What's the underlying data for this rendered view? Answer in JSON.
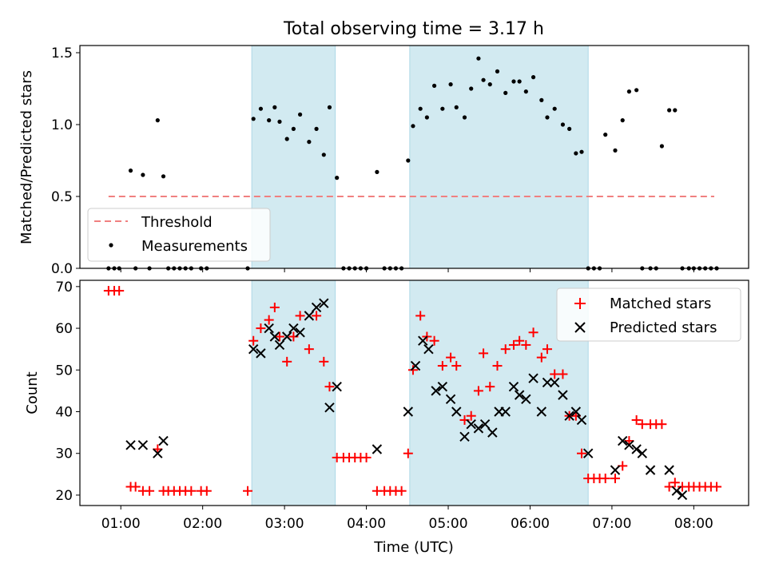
{
  "chart_data": [
    {
      "type": "scatter",
      "title": "Total observing time = 3.17 h",
      "ylabel": "Matched/Predicted stars",
      "ylim": [
        0,
        1.55
      ],
      "yticks": [
        0.0,
        0.5,
        1.0,
        1.5
      ],
      "ytick_labels": [
        "0.0",
        "0.5",
        "1.0",
        "1.5"
      ],
      "x_unit": "hours UTC",
      "xlim": [
        0.5,
        8.67
      ],
      "xticks": [
        1,
        2,
        3,
        4,
        5,
        6,
        7,
        8
      ],
      "shaded_intervals": [
        [
          2.6,
          3.62
        ],
        [
          4.53,
          6.71
        ]
      ],
      "shade_color": "#add8e6",
      "threshold": {
        "name": "Threshold",
        "y": 0.5,
        "x_range": [
          0.85,
          8.25
        ],
        "color": "#f08080"
      },
      "legend": {
        "position": "lower-left",
        "entries": [
          "Threshold",
          "Measurements"
        ]
      },
      "series": [
        {
          "name": "Measurements",
          "color": "#000000",
          "x": [
            0.85,
            0.92,
            0.98,
            1.12,
            1.18,
            1.27,
            1.35,
            1.45,
            1.52,
            1.58,
            1.65,
            1.72,
            1.79,
            1.86,
            1.98,
            2.05,
            2.55,
            2.62,
            2.71,
            2.81,
            2.88,
            2.94,
            3.03,
            3.11,
            3.19,
            3.3,
            3.39,
            3.48,
            3.55,
            3.64,
            3.72,
            3.79,
            3.86,
            3.93,
            4.0,
            4.13,
            4.22,
            4.29,
            4.36,
            4.43,
            4.51,
            4.57,
            4.66,
            4.74,
            4.83,
            4.93,
            5.03,
            5.1,
            5.2,
            5.28,
            5.37,
            5.43,
            5.51,
            5.6,
            5.7,
            5.8,
            5.87,
            5.95,
            6.04,
            6.14,
            6.21,
            6.3,
            6.4,
            6.48,
            6.56,
            6.63,
            6.71,
            6.78,
            6.85,
            6.92,
            7.04,
            7.13,
            7.21,
            7.3,
            7.37,
            7.47,
            7.54,
            7.61,
            7.7,
            7.77,
            7.86,
            7.94,
            8.0,
            8.07,
            8.14,
            8.21,
            8.28
          ],
          "y": [
            0,
            0,
            0,
            0.68,
            0,
            0.65,
            0,
            1.03,
            0.64,
            0,
            0,
            0,
            0,
            0,
            0,
            0,
            0,
            1.04,
            1.11,
            1.03,
            1.12,
            1.02,
            0.9,
            0.97,
            1.07,
            0.88,
            0.97,
            0.79,
            1.12,
            0.63,
            0,
            0,
            0,
            0,
            0,
            0.67,
            0,
            0,
            0,
            0,
            0.75,
            0.99,
            1.11,
            1.05,
            1.27,
            1.11,
            1.28,
            1.12,
            1.05,
            1.25,
            1.46,
            1.31,
            1.28,
            1.37,
            1.22,
            1.3,
            1.3,
            1.23,
            1.33,
            1.17,
            1.05,
            1.11,
            1.0,
            0.97,
            0.8,
            0.81,
            0,
            0,
            0,
            0.93,
            0.82,
            1.03,
            1.23,
            1.24,
            0,
            0,
            0,
            0.85,
            1.1,
            1.1,
            0,
            0,
            0,
            0,
            0,
            0,
            0
          ]
        }
      ]
    },
    {
      "type": "scatter",
      "xlabel": "Time (UTC)",
      "ylabel": "Count",
      "ylim": [
        17.5,
        71.5
      ],
      "yticks": [
        20,
        30,
        40,
        50,
        60,
        70
      ],
      "ytick_labels": [
        "20",
        "30",
        "40",
        "50",
        "60",
        "70"
      ],
      "x_unit": "hours UTC",
      "xlim": [
        0.5,
        8.67
      ],
      "xticks": [
        1,
        2,
        3,
        4,
        5,
        6,
        7,
        8
      ],
      "xtick_labels": [
        "01:00",
        "02:00",
        "03:00",
        "04:00",
        "05:00",
        "06:00",
        "07:00",
        "08:00"
      ],
      "shaded_intervals": [
        [
          2.6,
          3.62
        ],
        [
          4.53,
          6.71
        ]
      ],
      "shade_color": "#add8e6",
      "legend": {
        "position": "top-right",
        "entries": [
          "Matched stars",
          "Predicted stars"
        ]
      },
      "series": [
        {
          "name": "Matched stars",
          "marker": "plus",
          "color": "#ff0000",
          "x": [
            0.85,
            0.92,
            0.98,
            1.12,
            1.18,
            1.27,
            1.35,
            1.45,
            1.52,
            1.58,
            1.65,
            1.72,
            1.79,
            1.86,
            1.98,
            2.05,
            2.55,
            2.62,
            2.71,
            2.81,
            2.88,
            2.94,
            3.03,
            3.11,
            3.19,
            3.3,
            3.39,
            3.48,
            3.55,
            3.64,
            3.72,
            3.79,
            3.86,
            3.93,
            4.0,
            4.13,
            4.22,
            4.29,
            4.36,
            4.43,
            4.51,
            4.57,
            4.66,
            4.74,
            4.83,
            4.93,
            5.03,
            5.1,
            5.2,
            5.28,
            5.37,
            5.43,
            5.51,
            5.6,
            5.7,
            5.8,
            5.87,
            5.95,
            6.04,
            6.14,
            6.21,
            6.3,
            6.4,
            6.48,
            6.56,
            6.63,
            6.71,
            6.78,
            6.85,
            6.92,
            7.04,
            7.13,
            7.21,
            7.3,
            7.37,
            7.47,
            7.54,
            7.61,
            7.7,
            7.77,
            7.86,
            7.94,
            8.0,
            8.07,
            8.14,
            8.21,
            8.28
          ],
          "y": [
            69,
            69,
            69,
            22,
            22,
            21,
            21,
            31,
            21,
            21,
            21,
            21,
            21,
            21,
            21,
            21,
            21,
            57,
            60,
            62,
            65,
            58,
            52,
            58,
            63,
            55,
            63,
            52,
            46,
            29,
            29,
            29,
            29,
            29,
            29,
            21,
            21,
            21,
            21,
            21,
            30,
            50,
            63,
            58,
            57,
            51,
            53,
            51,
            38,
            39,
            45,
            54,
            46,
            51,
            55,
            56,
            57,
            56,
            59,
            53,
            55,
            49,
            49,
            39,
            39,
            30,
            24,
            24,
            24,
            24,
            24,
            27,
            33,
            38,
            37,
            37,
            37,
            37,
            22,
            23,
            22,
            22,
            22,
            22,
            22,
            22,
            22
          ]
        },
        {
          "name": "Predicted stars",
          "marker": "x",
          "color": "#000000",
          "x": [
            1.12,
            1.27,
            1.45,
            1.52,
            2.62,
            2.71,
            2.81,
            2.88,
            2.94,
            3.03,
            3.11,
            3.19,
            3.3,
            3.39,
            3.48,
            3.55,
            3.64,
            4.13,
            4.51,
            4.6,
            4.69,
            4.76,
            4.85,
            4.93,
            5.03,
            5.1,
            5.2,
            5.28,
            5.37,
            5.45,
            5.54,
            5.62,
            5.7,
            5.8,
            5.87,
            5.95,
            6.04,
            6.14,
            6.21,
            6.3,
            6.4,
            6.48,
            6.56,
            6.63,
            6.71,
            7.04,
            7.13,
            7.21,
            7.3,
            7.37,
            7.47,
            7.7,
            7.79,
            7.86
          ],
          "y": [
            32,
            32,
            30,
            33,
            55,
            54,
            60,
            58,
            56,
            58,
            60,
            59,
            63,
            65,
            66,
            41,
            46,
            31,
            40,
            51,
            57,
            55,
            45,
            46,
            43,
            40,
            34,
            37,
            36,
            37,
            35,
            40,
            40,
            46,
            44,
            43,
            48,
            40,
            47,
            47,
            44,
            39,
            40,
            38,
            30,
            26,
            33,
            32,
            31,
            30,
            26,
            26,
            21,
            20
          ]
        }
      ]
    }
  ]
}
